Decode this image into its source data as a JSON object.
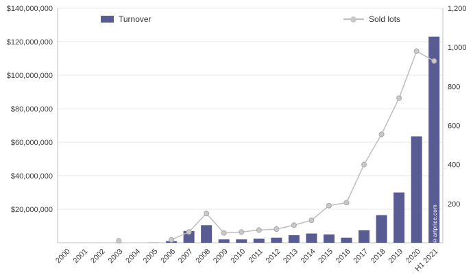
{
  "chart_data": {
    "type": "bar",
    "combo": "bar+line, dual axis",
    "legend_position": "top",
    "grid": true,
    "categories": [
      "2000",
      "2001",
      "2002",
      "2003",
      "2004",
      "2005",
      "2006",
      "2007",
      "2008",
      "2009",
      "2010",
      "2011",
      "2012",
      "2013",
      "2014",
      "2015",
      "2016",
      "2017",
      "2018",
      "2019",
      "2020",
      "H1 2021"
    ],
    "series": [
      {
        "name": "Turnover",
        "kind": "bar",
        "axis": "left",
        "color": "#595b93",
        "values": [
          0,
          0,
          0,
          50000,
          0,
          100000,
          1000000,
          7000000,
          10500000,
          2000000,
          2000000,
          2500000,
          3000000,
          4500000,
          5500000,
          5000000,
          3000000,
          7500000,
          16500000,
          30000000,
          63500000,
          123000000
        ]
      },
      {
        "name": "Sold lots",
        "kind": "line",
        "axis": "right",
        "color": "#bdbdbd",
        "values": [
          null,
          null,
          null,
          10,
          null,
          null,
          15,
          55,
          150,
          50,
          55,
          65,
          70,
          90,
          115,
          190,
          205,
          400,
          555,
          740,
          980,
          930
        ]
      }
    ],
    "left_axis": {
      "min": 0,
      "max": 140000000,
      "ticks": [
        {
          "label": "$140,000,000",
          "value": 140000000
        },
        {
          "label": "$120,000,000",
          "value": 120000000
        },
        {
          "label": "$100,000,000",
          "value": 100000000
        },
        {
          "label": "$80,000,000",
          "value": 80000000
        },
        {
          "label": "$60,000,000",
          "value": 60000000
        },
        {
          "label": "$40,000,000",
          "value": 40000000
        },
        {
          "label": "$20,000,000",
          "value": 20000000
        }
      ]
    },
    "right_axis": {
      "min": 0,
      "max": 1200,
      "ticks": [
        {
          "label": "1,200",
          "value": 1200
        },
        {
          "label": "1,000",
          "value": 1000
        },
        {
          "label": "800",
          "value": 800
        },
        {
          "label": "600",
          "value": 600
        },
        {
          "label": "400",
          "value": 400
        },
        {
          "label": "200",
          "value": 200
        }
      ]
    }
  },
  "watermark": "©artprice.com",
  "colors": {
    "bar": "#595b93",
    "line": "#bdbdbd",
    "marker": "#c9c9c9",
    "marker_stroke": "#a8a8a8",
    "grid": "#e7e7e7",
    "axis_line": "#c2c2c2",
    "text": "#3a3a3a",
    "background": "#ffffff"
  }
}
